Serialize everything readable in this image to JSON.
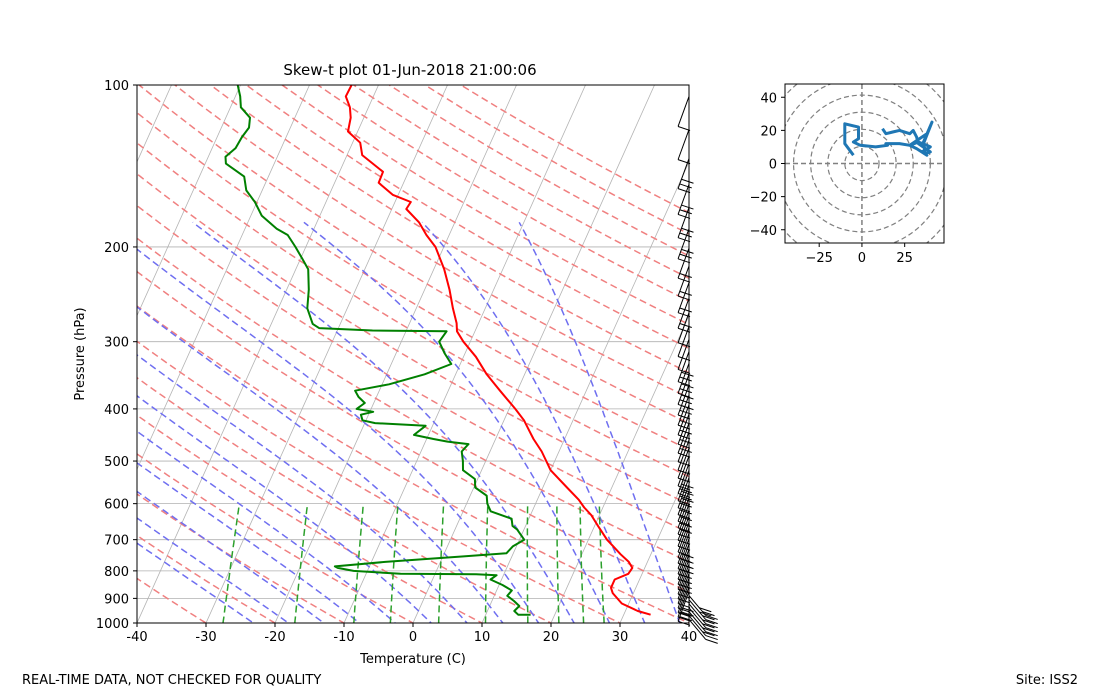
{
  "footer": {
    "disclaimer": "REAL-TIME DATA, NOT CHECKED FOR QUALITY",
    "site": "Site: ISS2"
  },
  "chart_data": [
    {
      "type": "line",
      "subtype": "skew-t",
      "title": "Skew-t plot 01-Jun-2018 21:00:06",
      "xlabel": "Temperature (C)",
      "ylabel": "Pressure (hPa)",
      "xlim": [
        -40,
        40
      ],
      "ylim": [
        1000,
        100
      ],
      "y_scale": "log",
      "x_ticks": [
        -40,
        -30,
        -20,
        -10,
        0,
        10,
        20,
        30,
        40
      ],
      "y_ticks": [
        100,
        200,
        300,
        400,
        500,
        600,
        700,
        800,
        900,
        1000
      ],
      "grid": true,
      "colors": {
        "temperature": "#ff0000",
        "dewpoint": "#008000",
        "dry_adiabats": "#f08080",
        "moist_adiabats": "#6f6ff0",
        "mixing_ratio": "#2ca02c",
        "isotherms": "#b4b4b4",
        "wind_barbs": "#000000"
      },
      "series": [
        {
          "name": "Temperature",
          "points": [
            [
              33.9,
              965
            ],
            [
              31.8,
              950
            ],
            [
              29.0,
              920
            ],
            [
              27.0,
              880
            ],
            [
              26.4,
              860
            ],
            [
              26.4,
              830
            ],
            [
              28.0,
              810
            ],
            [
              28.2,
              790
            ],
            [
              27.3,
              770
            ],
            [
              25.6,
              745
            ],
            [
              24.0,
              720
            ],
            [
              22.7,
              700
            ],
            [
              20.5,
              660
            ],
            [
              18.8,
              630
            ],
            [
              17.3,
              610
            ],
            [
              16.0,
              590
            ],
            [
              13.5,
              560
            ],
            [
              10.0,
              520
            ],
            [
              7.5,
              480
            ],
            [
              5.5,
              455
            ],
            [
              4.4,
              440
            ],
            [
              2.9,
              420
            ],
            [
              0.9,
              400
            ],
            [
              -2.5,
              370
            ],
            [
              -5.5,
              345
            ],
            [
              -8.2,
              320
            ],
            [
              -11.0,
              300
            ],
            [
              -12.6,
              287
            ],
            [
              -13.2,
              277
            ],
            [
              -14.7,
              260
            ],
            [
              -16.4,
              240
            ],
            [
              -18.5,
              220
            ],
            [
              -21.2,
              200
            ],
            [
              -23.3,
              190
            ],
            [
              -25.2,
              180
            ],
            [
              -27.9,
              170
            ],
            [
              -27.7,
              165
            ],
            [
              -30.8,
              160
            ],
            [
              -33.6,
              152
            ],
            [
              -33.7,
              145
            ],
            [
              -37.8,
              135
            ],
            [
              -38.9,
              128
            ],
            [
              -41.4,
              122
            ],
            [
              -41.9,
              115
            ],
            [
              -42.7,
              110
            ],
            [
              -44.0,
              105
            ],
            [
              -43.9,
              100
            ]
          ]
        },
        {
          "name": "Dewpoint",
          "points": [
            [
              16.5,
              965
            ],
            [
              14.7,
              965
            ],
            [
              13.9,
              950
            ],
            [
              14.3,
              930
            ],
            [
              13.2,
              910
            ],
            [
              11.9,
              890
            ],
            [
              12.2,
              870
            ],
            [
              10.5,
              850
            ],
            [
              8.4,
              830
            ],
            [
              9.0,
              815
            ],
            [
              6.0,
              812
            ],
            [
              -5.0,
              810
            ],
            [
              -12.0,
              800
            ],
            [
              -14.5,
              790
            ],
            [
              -15.0,
              785
            ],
            [
              -8.0,
              770
            ],
            [
              3.0,
              752
            ],
            [
              9.0,
              742
            ],
            [
              9.5,
              720
            ],
            [
              10.7,
              700
            ],
            [
              9.0,
              670
            ],
            [
              8.1,
              660
            ],
            [
              7.5,
              640
            ],
            [
              4.0,
              620
            ],
            [
              3.0,
              600
            ],
            [
              2.4,
              580
            ],
            [
              0.2,
              560
            ],
            [
              -0.4,
              540
            ],
            [
              -2.7,
              520
            ],
            [
              -3.3,
              500
            ],
            [
              -4.1,
              480
            ],
            [
              -3.6,
              465
            ],
            [
              -6.8,
              460
            ],
            [
              -9.0,
              455
            ],
            [
              -12.1,
              447
            ],
            [
              -11.0,
              430
            ],
            [
              -18.5,
              425
            ],
            [
              -20.5,
              420
            ],
            [
              -21.1,
              410
            ],
            [
              -19.5,
              405
            ],
            [
              -22.1,
              400
            ],
            [
              -21.3,
              390
            ],
            [
              -22.6,
              380
            ],
            [
              -23.5,
              370
            ],
            [
              -19.0,
              360
            ],
            [
              -14.5,
              345
            ],
            [
              -11.3,
              330
            ],
            [
              -13.0,
              315
            ],
            [
              -14.5,
              300
            ],
            [
              -14.1,
              287
            ],
            [
              -24.9,
              286
            ],
            [
              -32.8,
              283
            ],
            [
              -34.0,
              278
            ],
            [
              -35.8,
              260
            ],
            [
              -36.8,
              240
            ],
            [
              -38.2,
              220
            ],
            [
              -39.8,
              210
            ],
            [
              -41.5,
              200
            ],
            [
              -43.4,
              190
            ],
            [
              -45.4,
              185
            ],
            [
              -48.4,
              175
            ],
            [
              -50.3,
              165
            ],
            [
              -52.3,
              157
            ],
            [
              -53.5,
              148
            ],
            [
              -57.0,
              140
            ],
            [
              -57.5,
              136
            ],
            [
              -56.6,
              131
            ],
            [
              -56.4,
              125
            ],
            [
              -56.0,
              120
            ],
            [
              -56.5,
              115
            ],
            [
              -58.5,
              110
            ],
            [
              -59.3,
              105
            ],
            [
              -60.4,
              100
            ]
          ]
        }
      ],
      "hodograph": {
        "type": "line",
        "xlim": [
          -45,
          48
        ],
        "ylim": [
          -48,
          48
        ],
        "x_ticks": [
          -25,
          0,
          25
        ],
        "y_ticks": [
          -40,
          -20,
          0,
          20,
          40
        ],
        "ring_step": 10,
        "color": "#1f77b4",
        "u": [
          -5,
          -10,
          -10,
          -2,
          -2,
          -5,
          -1,
          8,
          15,
          14,
          22,
          28,
          33,
          38,
          40,
          35,
          38,
          32,
          28,
          38,
          36,
          41,
          36,
          37,
          40,
          33,
          32,
          30,
          28,
          22,
          18,
          14,
          12
        ],
        "v": [
          5,
          12,
          24,
          22,
          15,
          13,
          11,
          10,
          11,
          12,
          12,
          11,
          13,
          11,
          10,
          7,
          5,
          9,
          11,
          18,
          12,
          25,
          13,
          6,
          7,
          12,
          16,
          20,
          18,
          20,
          19,
          18,
          21
        ]
      }
    }
  ]
}
